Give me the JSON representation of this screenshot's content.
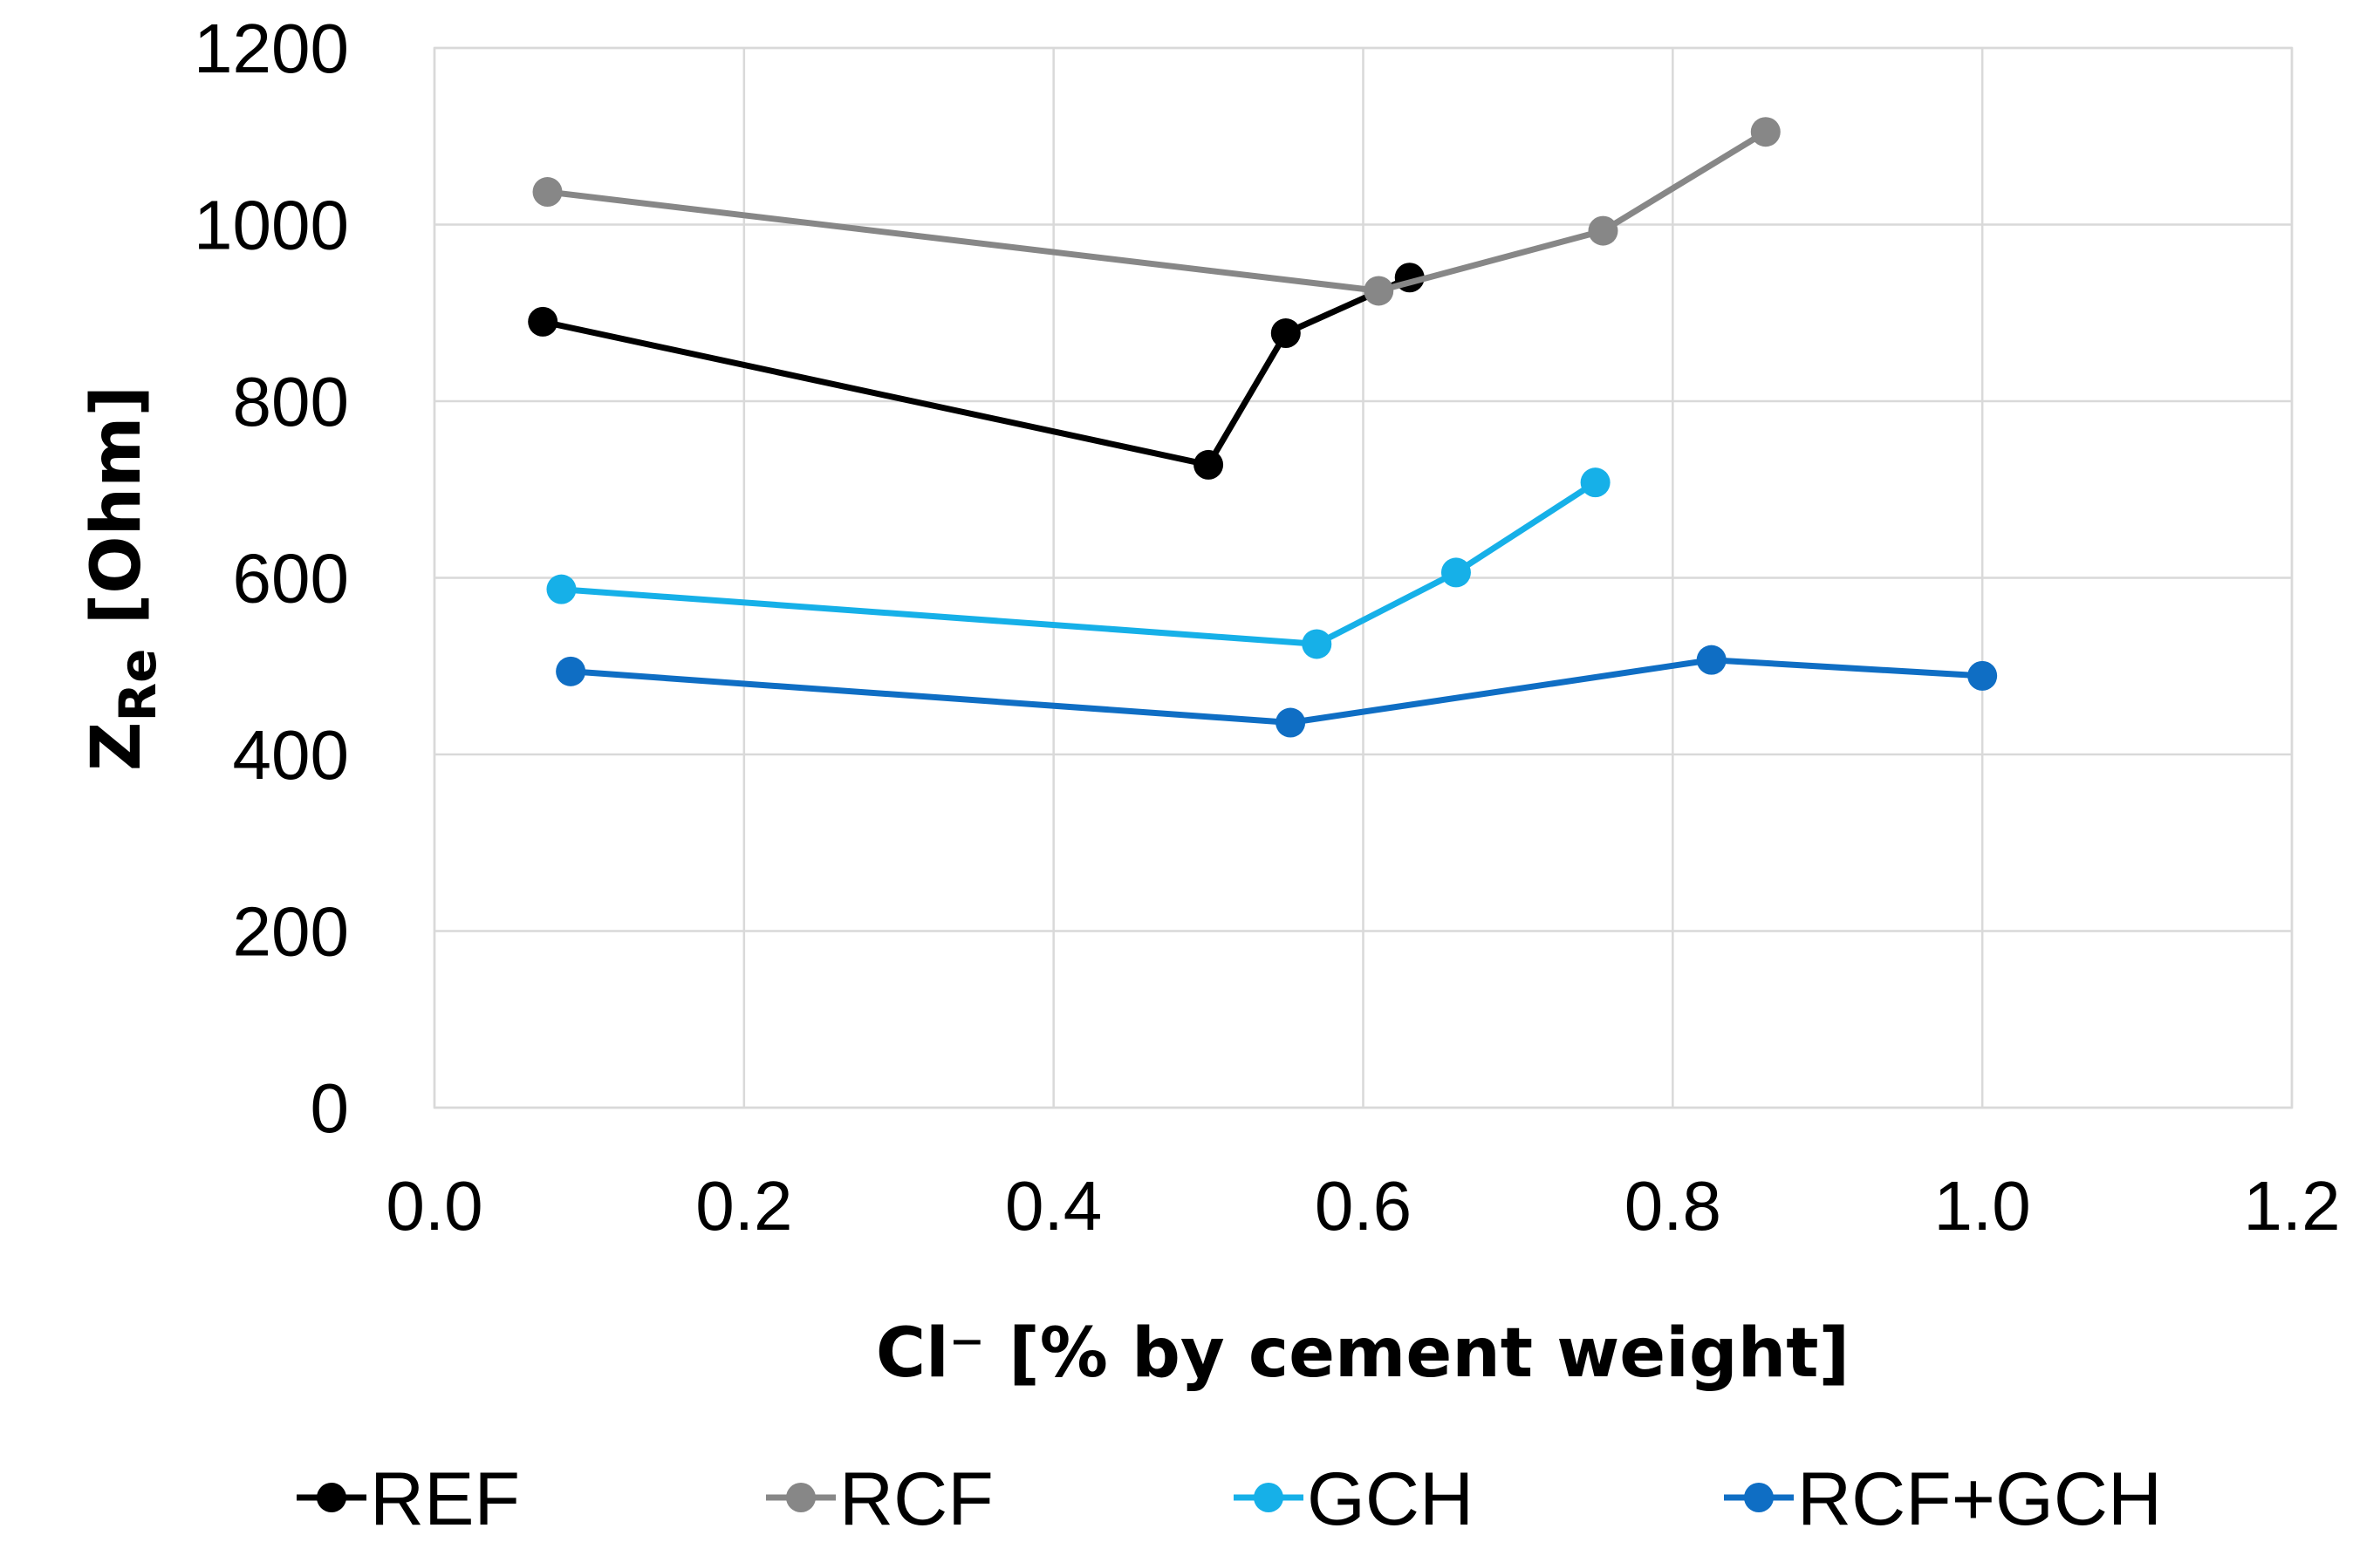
{
  "chart_data": {
    "type": "line",
    "title": "",
    "xlabel": "Cl⁻ [% by cement weight]",
    "ylabel": {
      "main": "Z",
      "subscript": "Re",
      "unit": " [Ohm]"
    },
    "xlim": [
      0.0,
      1.2
    ],
    "ylim": [
      0,
      1200
    ],
    "x_ticks": [
      "0.0",
      "0.2",
      "0.4",
      "0.6",
      "0.8",
      "1.0",
      "1.2"
    ],
    "y_ticks": [
      "0",
      "200",
      "400",
      "600",
      "800",
      "1000",
      "1200"
    ],
    "x_tick_values": [
      0.0,
      0.2,
      0.4,
      0.6,
      0.8,
      1.0,
      1.2
    ],
    "y_tick_values": [
      0,
      200,
      400,
      600,
      800,
      1000,
      1200
    ],
    "grid": true,
    "legend_position": "bottom",
    "series": [
      {
        "name": "REF",
        "color": "#000000",
        "x": [
          0.07,
          0.5,
          0.55,
          0.63
        ],
        "y": [
          890,
          728,
          877,
          940
        ]
      },
      {
        "name": "RCF",
        "color": "#878787",
        "x": [
          0.073,
          0.61,
          0.755,
          0.86
        ],
        "y": [
          1037,
          925,
          993,
          1105
        ]
      },
      {
        "name": "GCH",
        "color": "#16b0e8",
        "x": [
          0.082,
          0.57,
          0.66,
          0.75
        ],
        "y": [
          587,
          525,
          606,
          708
        ]
      },
      {
        "name": "RCF+GCH",
        "color": "#0f6ec4",
        "x": [
          0.088,
          0.553,
          0.825,
          1.0
        ],
        "y": [
          494,
          436,
          507,
          489
        ]
      }
    ]
  }
}
